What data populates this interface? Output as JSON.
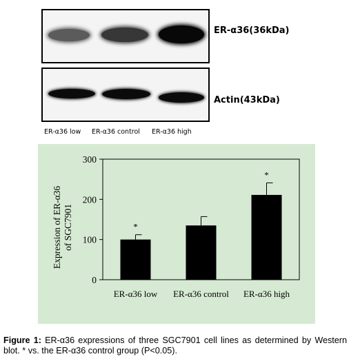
{
  "blots": {
    "top_label": "ER-α36(36kDa)",
    "bottom_label": "Actin(43kDa)",
    "lanes": [
      "ER-α36 low",
      "ER-α36 control",
      "ER-α36 high"
    ],
    "er_band_intensity": [
      0.45,
      0.7,
      1.0
    ],
    "actin_band_intensity": [
      0.95,
      0.95,
      0.95
    ]
  },
  "chart_data": {
    "type": "bar",
    "categories": [
      "ER-α36 low",
      "ER-α36 control",
      "ER-α36 high"
    ],
    "values": [
      100,
      135,
      211
    ],
    "errors": [
      12,
      22,
      30
    ],
    "significance": [
      "*",
      "",
      "*"
    ],
    "ylabel_line1": "Expression of ER-α36",
    "ylabel_line2": "of SGC7901",
    "ylim": [
      0,
      300
    ],
    "yticks": [
      "0",
      "100",
      "200",
      "300"
    ],
    "bar_color": "#000000",
    "panel_background": "#d6ead3",
    "grid": false
  },
  "caption": {
    "label": "Figure 1:",
    "text": " ER-α36 expressions of three SGC7901 cell lines as determined by Western blot. * vs. the ER-α36 control group (P<0.05)."
  }
}
